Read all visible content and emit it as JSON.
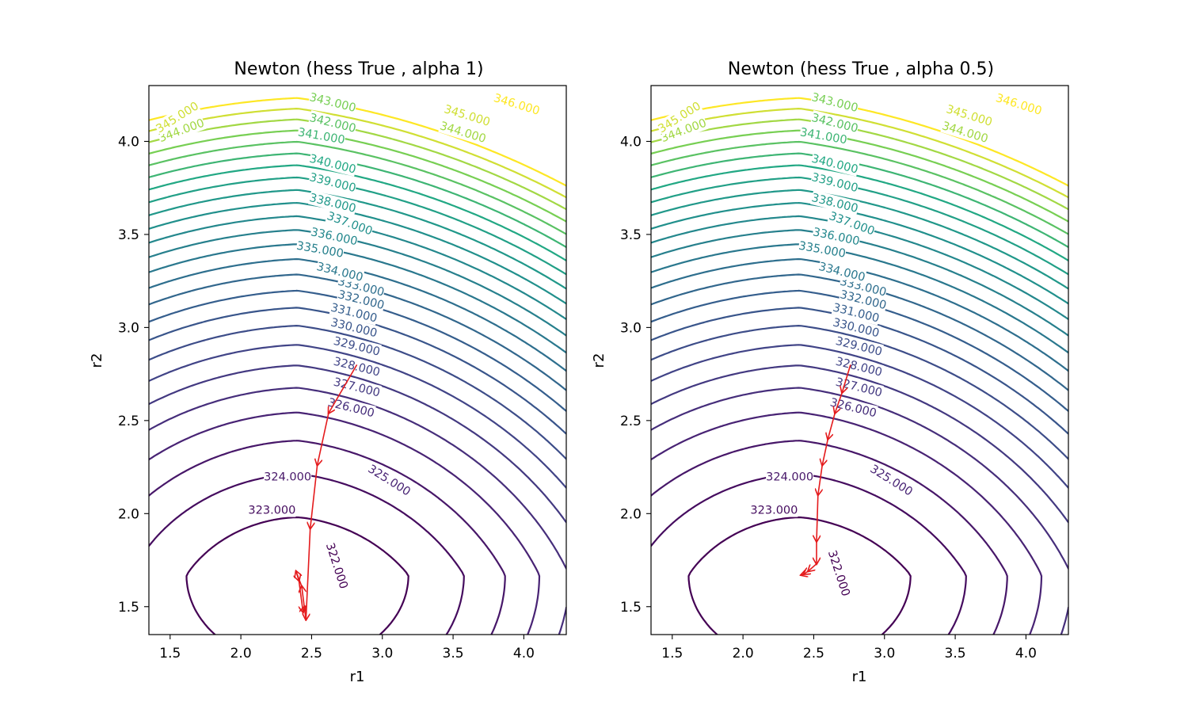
{
  "chart_data": [
    {
      "type": "contour",
      "title": "Newton (hess True , alpha 1)",
      "xlabel": "r1",
      "ylabel": "r2",
      "xlim": [
        1.35,
        4.3
      ],
      "ylim": [
        1.35,
        4.3
      ],
      "xticks": [
        1.5,
        2.0,
        2.5,
        3.0,
        3.5,
        4.0
      ],
      "yticks": [
        1.5,
        2.0,
        2.5,
        3.0,
        3.5,
        4.0
      ],
      "xtick_labels": [
        "1.5",
        "2.0",
        "2.5",
        "3.0",
        "3.5",
        "4.0"
      ],
      "ytick_labels": [
        "1.5",
        "2.0",
        "2.5",
        "3.0",
        "3.5",
        "4.0"
      ],
      "contour_levels": [
        322,
        323,
        324,
        325,
        326,
        327,
        328,
        329,
        330,
        331,
        332,
        333,
        334,
        335,
        336,
        337,
        338,
        339,
        340,
        341,
        342,
        343,
        344,
        345,
        346
      ],
      "contour_labels": [
        {
          "text": "322.000",
          "x": 2.68,
          "y": 1.72,
          "angle": 72
        },
        {
          "text": "323.000",
          "x": 2.22,
          "y": 2.02,
          "angle": 0
        },
        {
          "text": "324.000",
          "x": 2.33,
          "y": 2.2,
          "angle": 0
        },
        {
          "text": "325.000",
          "x": 3.05,
          "y": 2.18,
          "angle": 32
        },
        {
          "text": "326.000",
          "x": 2.78,
          "y": 2.57,
          "angle": 14
        },
        {
          "text": "327.000",
          "x": 2.82,
          "y": 2.68,
          "angle": 14
        },
        {
          "text": "328.000",
          "x": 2.82,
          "y": 2.79,
          "angle": 14
        },
        {
          "text": "329.000",
          "x": 2.82,
          "y": 2.9,
          "angle": 14
        },
        {
          "text": "330.000",
          "x": 2.8,
          "y": 3.0,
          "angle": 14
        },
        {
          "text": "331.000",
          "x": 2.8,
          "y": 3.08,
          "angle": 14
        },
        {
          "text": "332.000",
          "x": 2.85,
          "y": 3.15,
          "angle": 14
        },
        {
          "text": "333.000",
          "x": 2.85,
          "y": 3.22,
          "angle": 14
        },
        {
          "text": "334.000",
          "x": 2.7,
          "y": 3.3,
          "angle": 14
        },
        {
          "text": "335.000",
          "x": 2.56,
          "y": 3.42,
          "angle": 10
        },
        {
          "text": "336.000",
          "x": 2.66,
          "y": 3.49,
          "angle": 12
        },
        {
          "text": "337.000",
          "x": 2.77,
          "y": 3.56,
          "angle": 20
        },
        {
          "text": "338.000",
          "x": 2.65,
          "y": 3.67,
          "angle": 14
        },
        {
          "text": "339.000",
          "x": 2.65,
          "y": 3.78,
          "angle": 14
        },
        {
          "text": "340.000",
          "x": 2.65,
          "y": 3.88,
          "angle": 14
        },
        {
          "text": "341.000",
          "x": 2.57,
          "y": 4.03,
          "angle": 10
        },
        {
          "text": "342.000",
          "x": 2.65,
          "y": 4.1,
          "angle": 14
        },
        {
          "text": "343.000",
          "x": 2.65,
          "y": 4.21,
          "angle": 14
        },
        {
          "text": "344.000",
          "x": 1.58,
          "y": 4.06,
          "angle": -20
        },
        {
          "text": "345.000",
          "x": 1.55,
          "y": 4.13,
          "angle": -32
        },
        {
          "text": "344.000",
          "x": 3.57,
          "y": 4.05,
          "angle": 17
        },
        {
          "text": "345.000",
          "x": 3.6,
          "y": 4.14,
          "angle": 17
        },
        {
          "text": "346.000",
          "x": 3.95,
          "y": 4.2,
          "angle": 17
        }
      ],
      "trajectory": [
        {
          "x": 2.82,
          "y": 2.8
        },
        {
          "x": 2.62,
          "y": 2.54
        },
        {
          "x": 2.54,
          "y": 2.26
        },
        {
          "x": 2.49,
          "y": 1.92
        },
        {
          "x": 2.46,
          "y": 1.43
        },
        {
          "x": 2.43,
          "y": 1.61
        },
        {
          "x": 2.39,
          "y": 1.69
        },
        {
          "x": 2.41,
          "y": 1.64
        },
        {
          "x": 2.44,
          "y": 1.47
        },
        {
          "x": 2.45,
          "y": 1.5
        }
      ]
    },
    {
      "type": "contour",
      "title": "Newton (hess True , alpha 0.5)",
      "xlabel": "r1",
      "ylabel": "r2",
      "xlim": [
        1.35,
        4.3
      ],
      "ylim": [
        1.35,
        4.3
      ],
      "xticks": [
        1.5,
        2.0,
        2.5,
        3.0,
        3.5,
        4.0
      ],
      "yticks": [
        1.5,
        2.0,
        2.5,
        3.0,
        3.5,
        4.0
      ],
      "xtick_labels": [
        "1.5",
        "2.0",
        "2.5",
        "3.0",
        "3.5",
        "4.0"
      ],
      "ytick_labels": [
        "1.5",
        "2.0",
        "2.5",
        "3.0",
        "3.5",
        "4.0"
      ],
      "contour_levels": [
        322,
        323,
        324,
        325,
        326,
        327,
        328,
        329,
        330,
        331,
        332,
        333,
        334,
        335,
        336,
        337,
        338,
        339,
        340,
        341,
        342,
        343,
        344,
        345,
        346
      ],
      "contour_labels": [
        {
          "text": "322.000",
          "x": 2.68,
          "y": 1.68,
          "angle": 72
        },
        {
          "text": "323.000",
          "x": 2.22,
          "y": 2.02,
          "angle": 0
        },
        {
          "text": "324.000",
          "x": 2.33,
          "y": 2.2,
          "angle": 0
        },
        {
          "text": "325.000",
          "x": 3.05,
          "y": 2.18,
          "angle": 32
        },
        {
          "text": "326.000",
          "x": 2.78,
          "y": 2.57,
          "angle": 14
        },
        {
          "text": "327.000",
          "x": 2.82,
          "y": 2.68,
          "angle": 14
        },
        {
          "text": "328.000",
          "x": 2.82,
          "y": 2.79,
          "angle": 14
        },
        {
          "text": "329.000",
          "x": 2.82,
          "y": 2.9,
          "angle": 14
        },
        {
          "text": "330.000",
          "x": 2.8,
          "y": 3.0,
          "angle": 14
        },
        {
          "text": "331.000",
          "x": 2.8,
          "y": 3.08,
          "angle": 14
        },
        {
          "text": "332.000",
          "x": 2.85,
          "y": 3.15,
          "angle": 14
        },
        {
          "text": "333.000",
          "x": 2.85,
          "y": 3.22,
          "angle": 14
        },
        {
          "text": "334.000",
          "x": 2.7,
          "y": 3.3,
          "angle": 14
        },
        {
          "text": "335.000",
          "x": 2.56,
          "y": 3.42,
          "angle": 10
        },
        {
          "text": "336.000",
          "x": 2.66,
          "y": 3.49,
          "angle": 12
        },
        {
          "text": "337.000",
          "x": 2.77,
          "y": 3.56,
          "angle": 20
        },
        {
          "text": "338.000",
          "x": 2.65,
          "y": 3.67,
          "angle": 14
        },
        {
          "text": "339.000",
          "x": 2.65,
          "y": 3.78,
          "angle": 14
        },
        {
          "text": "340.000",
          "x": 2.65,
          "y": 3.88,
          "angle": 14
        },
        {
          "text": "341.000",
          "x": 2.57,
          "y": 4.03,
          "angle": 10
        },
        {
          "text": "342.000",
          "x": 2.65,
          "y": 4.1,
          "angle": 14
        },
        {
          "text": "343.000",
          "x": 2.65,
          "y": 4.21,
          "angle": 14
        },
        {
          "text": "344.000",
          "x": 1.58,
          "y": 4.06,
          "angle": -20
        },
        {
          "text": "345.000",
          "x": 1.55,
          "y": 4.13,
          "angle": -32
        },
        {
          "text": "344.000",
          "x": 3.57,
          "y": 4.05,
          "angle": 17
        },
        {
          "text": "345.000",
          "x": 3.6,
          "y": 4.14,
          "angle": 17
        },
        {
          "text": "346.000",
          "x": 3.95,
          "y": 4.2,
          "angle": 17
        }
      ],
      "trajectory": [
        {
          "x": 2.76,
          "y": 2.8
        },
        {
          "x": 2.7,
          "y": 2.65
        },
        {
          "x": 2.65,
          "y": 2.54
        },
        {
          "x": 2.6,
          "y": 2.4
        },
        {
          "x": 2.56,
          "y": 2.26
        },
        {
          "x": 2.53,
          "y": 2.1
        },
        {
          "x": 2.52,
          "y": 1.85
        },
        {
          "x": 2.52,
          "y": 1.73
        },
        {
          "x": 2.46,
          "y": 1.69
        },
        {
          "x": 2.43,
          "y": 1.675
        },
        {
          "x": 2.41,
          "y": 1.67
        }
      ]
    }
  ]
}
